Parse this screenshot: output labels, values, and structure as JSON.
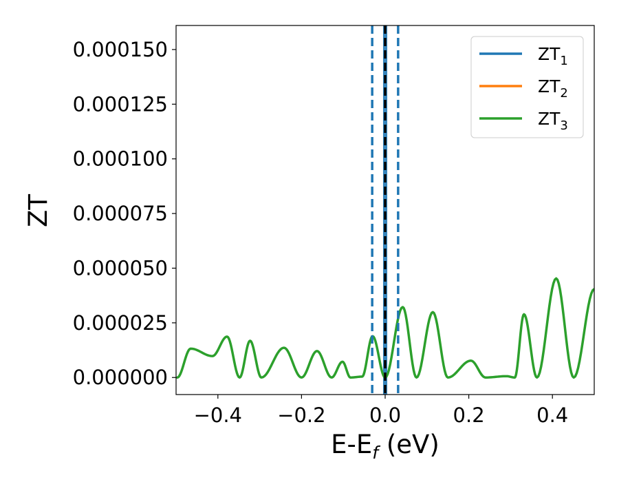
{
  "chart_data": {
    "type": "line",
    "title": "",
    "xlabel": {
      "main": "E-E",
      "sub": "f",
      "unit": " (eV)"
    },
    "ylabel": "ZT",
    "xlim": [
      -0.5,
      0.5
    ],
    "ylim": [
      -7.8e-06,
      0.000161
    ],
    "x_ticks": [
      -0.4,
      -0.2,
      0.0,
      0.2,
      0.4
    ],
    "x_tick_labels": [
      "−0.4",
      "−0.2",
      "0.0",
      "0.2",
      "0.4"
    ],
    "y_ticks": [
      0,
      2.5e-05,
      5e-05,
      7.5e-05,
      0.0001,
      0.000125,
      0.00015
    ],
    "y_tick_labels": [
      "0.000000",
      "0.000025",
      "0.000050",
      "0.000075",
      "0.000100",
      "0.000125",
      "0.000150"
    ],
    "grid": false,
    "legend": {
      "placement": "top-right",
      "entries": [
        {
          "base": "ZT",
          "sub": "1",
          "color": "#1f77b4"
        },
        {
          "base": "ZT",
          "sub": "2",
          "color": "#ff7f0e"
        },
        {
          "base": "ZT",
          "sub": "3",
          "color": "#2ca02c"
        }
      ]
    },
    "vlines": [
      {
        "x": -0.031,
        "style": "dashed",
        "color": "#1f77b4"
      },
      {
        "x": 0.0,
        "style": "dashed",
        "color": "#000000"
      },
      {
        "x": 0.031,
        "style": "dashed",
        "color": "#1f77b4"
      }
    ],
    "vspan": {
      "x0": -0.005,
      "x1": 0.005,
      "color": "#1f77b4"
    },
    "series": [
      {
        "name": "ZT3",
        "color": "#2ca02c",
        "peaks": [
          [
            -0.497,
            0.0
          ],
          [
            -0.465,
            1.32e-05
          ],
          [
            -0.413,
            9.8e-06
          ],
          [
            -0.378,
            1.87e-05
          ],
          [
            -0.348,
            0.0
          ],
          [
            -0.323,
            1.68e-05
          ],
          [
            -0.296,
            0.0
          ],
          [
            -0.242,
            1.36e-05
          ],
          [
            -0.2,
            0.0
          ],
          [
            -0.163,
            1.21e-05
          ],
          [
            -0.128,
            0.0
          ],
          [
            -0.102,
            7.2e-06
          ],
          [
            -0.083,
            0.0
          ],
          [
            -0.055,
            4e-07
          ],
          [
            -0.03,
            1.89e-05
          ],
          [
            0.0,
            0.0
          ],
          [
            0.042,
            3.22e-05
          ],
          [
            0.075,
            0.0
          ],
          [
            0.114,
            2.99e-05
          ],
          [
            0.15,
            0.0
          ],
          [
            0.205,
            7.7e-06
          ],
          [
            0.24,
            0.0
          ],
          [
            0.29,
            6e-07
          ],
          [
            0.31,
            0.0
          ],
          [
            0.332,
            2.89e-05
          ],
          [
            0.363,
            0.0
          ],
          [
            0.409,
            4.53e-05
          ],
          [
            0.451,
            0.0
          ],
          [
            0.5,
            4.04e-05
          ]
        ]
      }
    ]
  }
}
